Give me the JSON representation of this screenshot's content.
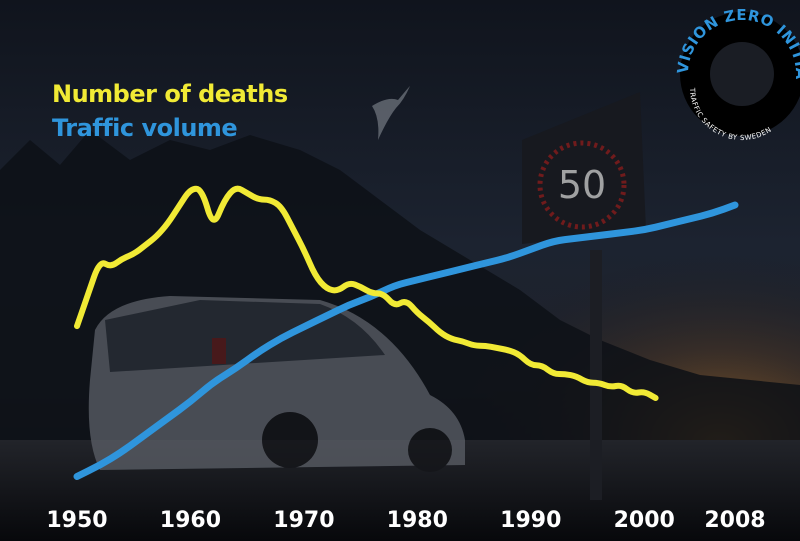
{
  "colors": {
    "deaths": "#f1ea35",
    "traffic": "#2f95dc",
    "background": "#0c0f16"
  },
  "sign": {
    "speed": "50"
  },
  "logo": {
    "text": "VISION ZERO INITIATIVE",
    "subtext": "TRAFFIC SAFETY BY SWEDEN"
  },
  "chart_data": {
    "type": "line",
    "title": "",
    "xlabel": "",
    "ylabel": "",
    "x_ticks": [
      "1950",
      "1960",
      "1970",
      "1980",
      "1990",
      "2000",
      "2008"
    ],
    "xlim": [
      1950,
      2008
    ],
    "legend_placement": "top-left",
    "grid": false,
    "series": [
      {
        "name": "Number of deaths",
        "color": "#f1ea35",
        "points": [
          [
            1950,
            33
          ],
          [
            1951,
            48
          ],
          [
            1952,
            63
          ],
          [
            1953,
            60
          ],
          [
            1954,
            64
          ],
          [
            1955,
            66
          ],
          [
            1956,
            70
          ],
          [
            1957,
            74
          ],
          [
            1958,
            80
          ],
          [
            1959,
            88
          ],
          [
            1960,
            96
          ],
          [
            1961,
            96
          ],
          [
            1962,
            78
          ],
          [
            1963,
            91
          ],
          [
            1964,
            97
          ],
          [
            1965,
            94
          ],
          [
            1966,
            91
          ],
          [
            1967,
            91
          ],
          [
            1968,
            88
          ],
          [
            1969,
            78
          ],
          [
            1970,
            68
          ],
          [
            1971,
            56
          ],
          [
            1972,
            50
          ],
          [
            1973,
            49
          ],
          [
            1974,
            53
          ],
          [
            1975,
            51
          ],
          [
            1976,
            48
          ],
          [
            1977,
            48
          ],
          [
            1978,
            42
          ],
          [
            1979,
            45
          ],
          [
            1980,
            39
          ],
          [
            1981,
            35
          ],
          [
            1982,
            30
          ],
          [
            1983,
            27
          ],
          [
            1984,
            26
          ],
          [
            1985,
            24
          ],
          [
            1986,
            24
          ],
          [
            1987,
            23
          ],
          [
            1988,
            22
          ],
          [
            1989,
            20
          ],
          [
            1990,
            15
          ],
          [
            1991,
            15
          ],
          [
            1992,
            11
          ],
          [
            1993,
            11
          ],
          [
            1994,
            10
          ],
          [
            1995,
            7
          ],
          [
            1996,
            7
          ],
          [
            1997,
            5
          ],
          [
            1998,
            6
          ],
          [
            1999,
            2
          ],
          [
            2000,
            3
          ],
          [
            2001,
            0
          ]
        ]
      },
      {
        "name": "Traffic volume",
        "color": "#2f95dc",
        "points": [
          [
            1950,
            2
          ],
          [
            1952,
            6
          ],
          [
            1954,
            11
          ],
          [
            1956,
            17
          ],
          [
            1958,
            23
          ],
          [
            1960,
            29
          ],
          [
            1962,
            36
          ],
          [
            1964,
            41
          ],
          [
            1966,
            47
          ],
          [
            1968,
            52
          ],
          [
            1970,
            56
          ],
          [
            1972,
            60
          ],
          [
            1974,
            64
          ],
          [
            1976,
            67
          ],
          [
            1978,
            71
          ],
          [
            1980,
            73
          ],
          [
            1982,
            75
          ],
          [
            1984,
            77
          ],
          [
            1986,
            79
          ],
          [
            1988,
            81
          ],
          [
            1990,
            84
          ],
          [
            1992,
            87
          ],
          [
            1994,
            88
          ],
          [
            1996,
            89
          ],
          [
            1998,
            90
          ],
          [
            2000,
            91
          ],
          [
            2002,
            93
          ],
          [
            2004,
            95
          ],
          [
            2006,
            97
          ],
          [
            2008,
            100
          ]
        ]
      }
    ]
  }
}
